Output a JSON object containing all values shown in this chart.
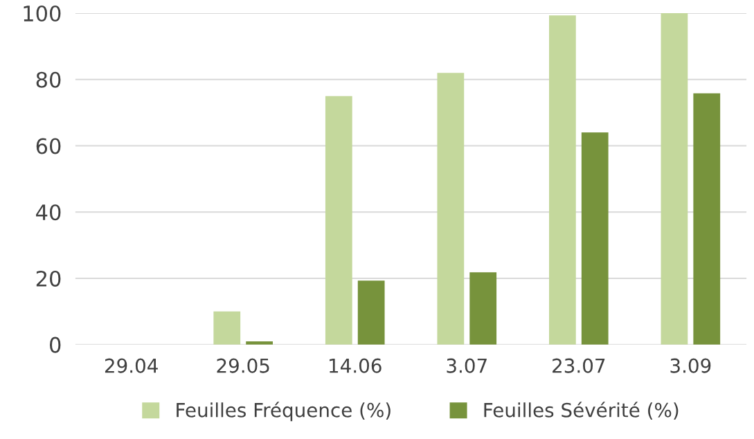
{
  "chart_data": {
    "type": "bar",
    "categories": [
      "29.04",
      "29.05",
      "14.06",
      "3.07",
      "23.07",
      "3.09"
    ],
    "series": [
      {
        "name": "Feuilles Fréquence (%)",
        "color": "#c4d89c",
        "values": [
          0,
          10,
          75,
          82,
          99.3,
          100
        ]
      },
      {
        "name": "Feuilles Sévérité (%)",
        "color": "#77933c",
        "values": [
          0,
          1,
          19.3,
          21.8,
          64,
          75.8
        ]
      }
    ],
    "ylim": [
      0,
      100
    ],
    "yticks": [
      0,
      20,
      40,
      60,
      80,
      100
    ],
    "grid": "y",
    "legend": "bottom"
  }
}
